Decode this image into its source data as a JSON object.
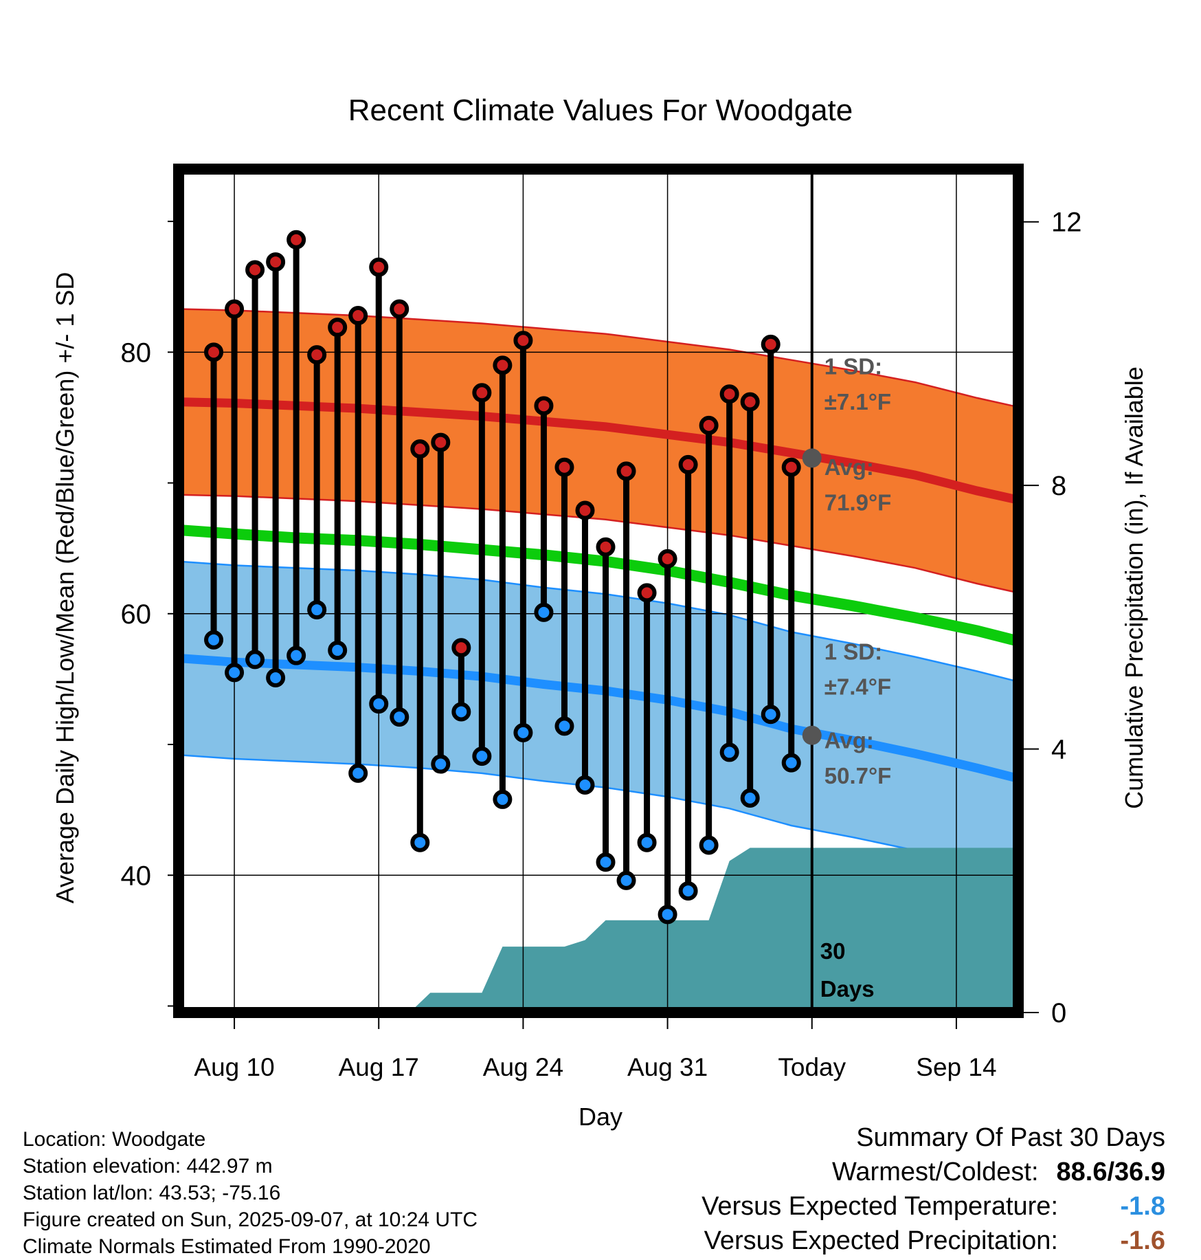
{
  "chart_data": {
    "type": "line",
    "title": "Recent Climate Values For Woodgate",
    "xlabel": "Day",
    "ylabel": "Average Daily High/Low/Mean (Red/Blue/Green) +/- 1 SD",
    "y2label": "Cumulative Precipitation (in), If Available",
    "x_ticks": [
      {
        "label": "Aug 10",
        "day": 10
      },
      {
        "label": "Aug 17",
        "day": 17
      },
      {
        "label": "Aug 24",
        "day": 24
      },
      {
        "label": "Aug 31",
        "day": 31
      },
      {
        "label": "Today",
        "day": 38
      },
      {
        "label": "Sep 14",
        "day": 45
      }
    ],
    "x_range_days_since_aug1": [
      7.3,
      48
    ],
    "today_day": 38,
    "y_ticks": [
      40,
      60,
      80
    ],
    "ylim": [
      29.5,
      94
    ],
    "y2_ticks": [
      0,
      4,
      8,
      12
    ],
    "y2lim": [
      0,
      12.8
    ],
    "grid": true,
    "observed": {
      "days": [
        9,
        10,
        11,
        12,
        13,
        14,
        15,
        16,
        17,
        18,
        19,
        20,
        21,
        22,
        23,
        24,
        25,
        26,
        27,
        28,
        29,
        30,
        31,
        32,
        33,
        34,
        35,
        36,
        37
      ],
      "highs": [
        80.0,
        83.3,
        86.3,
        86.9,
        88.6,
        79.8,
        81.9,
        82.8,
        86.5,
        83.3,
        72.6,
        73.1,
        57.4,
        76.9,
        79.0,
        80.9,
        75.9,
        71.2,
        67.9,
        65.1,
        70.9,
        61.6,
        64.2,
        71.4,
        74.4,
        76.8,
        76.2,
        80.6,
        71.2
      ],
      "lows": [
        58.0,
        55.5,
        56.5,
        55.1,
        56.8,
        60.3,
        57.2,
        47.8,
        53.1,
        52.1,
        42.5,
        48.5,
        52.5,
        49.1,
        45.8,
        50.9,
        60.1,
        51.4,
        46.9,
        41.0,
        39.6,
        42.5,
        37.0,
        38.8,
        42.3,
        49.4,
        45.9,
        52.3,
        48.6
      ],
      "high_color": "#cc1f1f",
      "low_color": "#1e90ff"
    },
    "normals": {
      "days": [
        7.3,
        10,
        13,
        16,
        19,
        22,
        25,
        28,
        31,
        34,
        37,
        40,
        43,
        46,
        48
      ],
      "high_avg": [
        76.2,
        76.1,
        75.9,
        75.7,
        75.4,
        75.1,
        74.7,
        74.3,
        73.7,
        73.1,
        72.3,
        71.5,
        70.6,
        69.4,
        68.7
      ],
      "low_avg": [
        56.6,
        56.3,
        56.1,
        55.9,
        55.6,
        55.2,
        54.6,
        54.1,
        53.4,
        52.5,
        51.2,
        50.3,
        49.3,
        48.2,
        47.4
      ],
      "mean_avg": [
        66.4,
        66.1,
        65.8,
        65.6,
        65.3,
        64.9,
        64.5,
        64.0,
        63.3,
        62.4,
        61.4,
        60.6,
        59.7,
        58.7,
        57.9
      ],
      "high_sd": 7.1,
      "low_sd": 7.4,
      "high_band_color": "#f47a2e",
      "low_band_color": "#84c1e8",
      "high_line_color": "#d42020",
      "low_line_color": "#1e8fff",
      "mean_line_color": "#0ccc0c"
    },
    "precip_cumulative": {
      "days": [
        18.5,
        19.5,
        22,
        23,
        24,
        25,
        26,
        27,
        28,
        29,
        30,
        31,
        32,
        33,
        34,
        35,
        36,
        37,
        38,
        48
      ],
      "values": [
        0.0,
        0.3,
        0.3,
        1.0,
        1.0,
        1.0,
        1.0,
        1.1,
        1.4,
        1.4,
        1.4,
        1.4,
        1.4,
        1.4,
        2.3,
        2.5,
        2.5,
        2.5,
        2.5,
        2.5
      ],
      "color": "#4a9ca3"
    },
    "annotations": {
      "high_sd_label_1": "1 SD:",
      "high_sd_label_2": "±7.1°F",
      "high_avg_label_1": "Avg:",
      "high_avg_label_2": "71.9°F",
      "high_today_avg": 71.9,
      "low_sd_label_1": "1 SD:",
      "low_sd_label_2": "±7.4°F",
      "low_avg_label_1": "Avg:",
      "low_avg_label_2": "50.7°F",
      "low_today_avg": 50.7,
      "days_label_1": "30",
      "days_label_2": "Days"
    }
  },
  "footer": {
    "location": "Location: Woodgate",
    "elevation": "Station elevation: 442.97 m",
    "latlon": "Station lat/lon: 43.53; -75.16",
    "created": "Figure created on Sun, 2025-09-07, at 10:24 UTC",
    "normals": "Climate Normals Estimated From 1990-2020"
  },
  "summary": {
    "title": "Summary Of Past 30 Days",
    "warm_cold_label": "Warmest/Coldest:",
    "warm_cold_value": "88.6/36.9",
    "temp_label": "Versus Expected Temperature:",
    "temp_value": "-1.8",
    "precip_label": "Versus Expected Precipitation:",
    "precip_value": "-1.6"
  }
}
